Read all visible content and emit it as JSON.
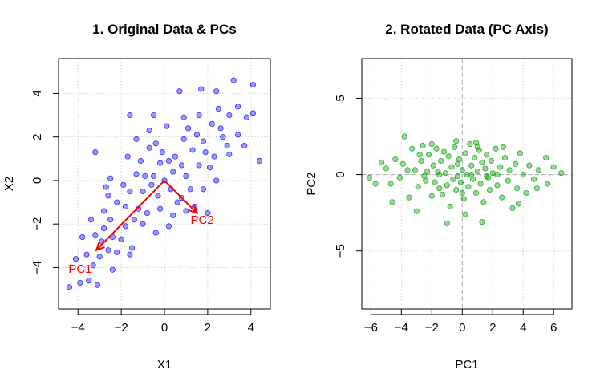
{
  "chart_data": [
    {
      "type": "scatter",
      "title": "1. Original Data & PCs",
      "xlabel": "X1",
      "ylabel": "X2",
      "xlim": [
        -4.9,
        4.9
      ],
      "ylim": [
        -5.9,
        5.6
      ],
      "xticks": [
        -4,
        -2,
        0,
        2,
        4
      ],
      "yticks": [
        -4,
        -2,
        0,
        2,
        4
      ],
      "grid": true,
      "point_color": "#0000ff",
      "arrow_color": "#ff0000",
      "pc_vectors": [
        {
          "name": "PC1",
          "x": -3.15,
          "y": -3.2,
          "label_x": -3.9,
          "label_y": -4.05
        },
        {
          "name": "PC2",
          "x": 1.5,
          "y": -1.5,
          "label_x": 1.75,
          "label_y": -1.8
        }
      ],
      "points": [
        [
          -4.4,
          -4.9
        ],
        [
          -3.5,
          -4.6
        ],
        [
          -3.1,
          -4.8
        ],
        [
          -3.9,
          -4.7
        ],
        [
          -3.3,
          -3.9
        ],
        [
          -3.6,
          -3.4
        ],
        [
          -3.0,
          -3.5
        ],
        [
          -2.9,
          -2.8
        ],
        [
          -2.6,
          -3.2
        ],
        [
          -2.2,
          -3.3
        ],
        [
          -1.6,
          -3.4
        ],
        [
          -3.2,
          -2.5
        ],
        [
          -2.8,
          -2.2
        ],
        [
          -2.4,
          -2.6
        ],
        [
          -2.0,
          -2.7
        ],
        [
          -3.4,
          -1.8
        ],
        [
          -2.5,
          -1.8
        ],
        [
          -1.8,
          -1.2
        ],
        [
          -1.4,
          -1.8
        ],
        [
          -1.0,
          -2.0
        ],
        [
          -2.8,
          -1.4
        ],
        [
          -2.2,
          -1.0
        ],
        [
          -1.6,
          -0.5
        ],
        [
          -1.0,
          -0.5
        ],
        [
          -0.6,
          -0.2
        ],
        [
          -1.9,
          -0.2
        ],
        [
          -1.3,
          0.3
        ],
        [
          -0.5,
          0.2
        ],
        [
          0.0,
          0.0
        ],
        [
          0.3,
          -0.4
        ],
        [
          -0.2,
          0.8
        ],
        [
          0.4,
          0.4
        ],
        [
          -1.1,
          0.9
        ],
        [
          -0.7,
          1.5
        ],
        [
          -0.1,
          1.3
        ],
        [
          0.5,
          1.1
        ],
        [
          1.0,
          0.2
        ],
        [
          0.8,
          -0.8
        ],
        [
          1.2,
          -0.4
        ],
        [
          1.6,
          0.7
        ],
        [
          1.3,
          1.4
        ],
        [
          0.9,
          1.9
        ],
        [
          1.8,
          1.8
        ],
        [
          2.3,
          1.1
        ],
        [
          2.7,
          2.0
        ],
        [
          2.2,
          2.6
        ],
        [
          1.6,
          3.0
        ],
        [
          3.0,
          3.0
        ],
        [
          3.4,
          3.4
        ],
        [
          3.8,
          2.9
        ],
        [
          4.1,
          3.1
        ],
        [
          4.4,
          0.9
        ],
        [
          4.1,
          4.4
        ],
        [
          3.2,
          4.6
        ],
        [
          2.4,
          4.1
        ],
        [
          1.7,
          4.2
        ],
        [
          0.7,
          4.1
        ],
        [
          0.9,
          2.9
        ],
        [
          2.6,
          2.4
        ],
        [
          3.0,
          1.2
        ],
        [
          3.7,
          1.6
        ],
        [
          1.8,
          -0.4
        ],
        [
          1.4,
          -1.2
        ],
        [
          2.0,
          -1.5
        ],
        [
          2.4,
          0.0
        ],
        [
          0.6,
          -1.0
        ],
        [
          -0.2,
          -1.3
        ],
        [
          -0.8,
          -1.5
        ],
        [
          -3.2,
          1.3
        ],
        [
          -1.6,
          3.0
        ],
        [
          -0.7,
          2.3
        ],
        [
          0.1,
          2.5
        ],
        [
          -1.3,
          1.9
        ],
        [
          -2.5,
          0.1
        ],
        [
          -2.7,
          -0.3
        ],
        [
          -0.4,
          -2.4
        ],
        [
          -1.5,
          -3.1
        ],
        [
          -2.4,
          -4.1
        ],
        [
          -3.8,
          -2.6
        ],
        [
          -4.1,
          -3.6
        ],
        [
          -0.4,
          1.7
        ],
        [
          0.8,
          0.7
        ],
        [
          1.1,
          2.4
        ],
        [
          2.1,
          0.6
        ],
        [
          2.9,
          1.6
        ],
        [
          3.4,
          2.1
        ],
        [
          0.2,
          0.9
        ],
        [
          -0.9,
          0.2
        ],
        [
          -1.2,
          -1.3
        ],
        [
          -0.3,
          -0.7
        ],
        [
          0.4,
          -1.6
        ],
        [
          1.0,
          -1.4
        ],
        [
          0.2,
          -2.1
        ],
        [
          -1.8,
          -2.1
        ],
        [
          -2.6,
          -0.7
        ],
        [
          1.5,
          2.1
        ],
        [
          2.5,
          3.3
        ],
        [
          -1.7,
          1.1
        ],
        [
          -0.5,
          3.0
        ],
        [
          1.9,
          1.3
        ]
      ]
    },
    {
      "type": "scatter",
      "title": "2. Rotated Data (PC Axis)",
      "xlabel": "PC1",
      "ylabel": "PC2",
      "xlim": [
        -6.6,
        7.2
      ],
      "ylim": [
        -8.8,
        7.6
      ],
      "xticks": [
        -6,
        -4,
        -2,
        0,
        2,
        4,
        6
      ],
      "yticks": [
        -5,
        0,
        5
      ],
      "grid": true,
      "zero_lines": true,
      "point_color": "#009900",
      "points": [
        [
          -6.1,
          -0.2
        ],
        [
          -5.3,
          0.8
        ],
        [
          -5.0,
          0.4
        ],
        [
          -4.7,
          -0.6
        ],
        [
          -4.4,
          1.0
        ],
        [
          -4.1,
          -0.2
        ],
        [
          -3.8,
          2.5
        ],
        [
          -3.6,
          0.3
        ],
        [
          -3.5,
          -1.5
        ],
        [
          -3.3,
          1.7
        ],
        [
          -3.1,
          0.3
        ],
        [
          -2.9,
          -0.8
        ],
        [
          -2.7,
          0.9
        ],
        [
          -2.6,
          1.9
        ],
        [
          -2.4,
          -0.4
        ],
        [
          -2.3,
          0.2
        ],
        [
          -2.2,
          1.3
        ],
        [
          -2.0,
          -1.4
        ],
        [
          -1.9,
          0.6
        ],
        [
          -1.8,
          -0.5
        ],
        [
          -1.7,
          1.7
        ],
        [
          -1.6,
          0.2
        ],
        [
          -1.5,
          -0.9
        ],
        [
          -1.4,
          0.9
        ],
        [
          -1.3,
          -1.3
        ],
        [
          -1.2,
          1.5
        ],
        [
          -1.1,
          0.1
        ],
        [
          -1.0,
          -0.7
        ],
        [
          -0.9,
          1.2
        ],
        [
          -0.8,
          -2.1
        ],
        [
          -0.7,
          0.5
        ],
        [
          -0.6,
          -0.3
        ],
        [
          -0.5,
          1.8
        ],
        [
          -0.4,
          -1.0
        ],
        [
          -0.3,
          0.7
        ],
        [
          -0.2,
          1.0
        ],
        [
          -0.1,
          -0.5
        ],
        [
          0.0,
          0.3
        ],
        [
          0.1,
          -1.6
        ],
        [
          0.2,
          1.4
        ],
        [
          0.3,
          0.0
        ],
        [
          0.4,
          -0.8
        ],
        [
          0.5,
          2.0
        ],
        [
          0.6,
          0.6
        ],
        [
          0.7,
          -0.3
        ],
        [
          0.8,
          1.1
        ],
        [
          0.9,
          -1.2
        ],
        [
          1.0,
          0.2
        ],
        [
          1.1,
          1.6
        ],
        [
          1.2,
          -0.6
        ],
        [
          1.3,
          0.8
        ],
        [
          1.4,
          -1.8
        ],
        [
          1.5,
          0.4
        ],
        [
          1.6,
          1.3
        ],
        [
          1.7,
          -0.2
        ],
        [
          1.8,
          -1.0
        ],
        [
          1.9,
          0.9
        ],
        [
          2.0,
          0.1
        ],
        [
          2.2,
          1.7
        ],
        [
          2.3,
          -0.7
        ],
        [
          2.5,
          0.5
        ],
        [
          2.6,
          -1.5
        ],
        [
          2.8,
          1.1
        ],
        [
          3.0,
          -0.4
        ],
        [
          3.1,
          0.3
        ],
        [
          3.3,
          -2.2
        ],
        [
          3.5,
          0.7
        ],
        [
          3.6,
          -0.9
        ],
        [
          3.8,
          1.4
        ],
        [
          4.0,
          0.0
        ],
        [
          4.2,
          -1.2
        ],
        [
          4.4,
          0.6
        ],
        [
          4.7,
          -0.3
        ],
        [
          5.0,
          0.3
        ],
        [
          5.5,
          1.1
        ],
        [
          5.6,
          -0.6
        ],
        [
          6.0,
          0.5
        ],
        [
          6.5,
          0.1
        ],
        [
          -3.0,
          -2.4
        ],
        [
          -1.0,
          -3.2
        ],
        [
          1.3,
          -3.1
        ],
        [
          0.2,
          -2.6
        ],
        [
          -2.8,
          1.3
        ],
        [
          -0.4,
          2.2
        ],
        [
          0.9,
          2.1
        ],
        [
          2.7,
          1.8
        ],
        [
          -4.6,
          -1.8
        ],
        [
          -2.0,
          2.0
        ],
        [
          3.7,
          -1.9
        ],
        [
          -1.5,
          0.0
        ],
        [
          -0.3,
          -0.1
        ],
        [
          0.6,
          0.0
        ],
        [
          1.6,
          -0.1
        ],
        [
          -2.5,
          -0.1
        ],
        [
          2.3,
          0.0
        ],
        [
          -5.7,
          -0.6
        ],
        [
          4.9,
          -0.9
        ],
        [
          -3.9,
          0.7
        ],
        [
          0.0,
          -1.2
        ],
        [
          1.0,
          1.8
        ]
      ]
    }
  ]
}
